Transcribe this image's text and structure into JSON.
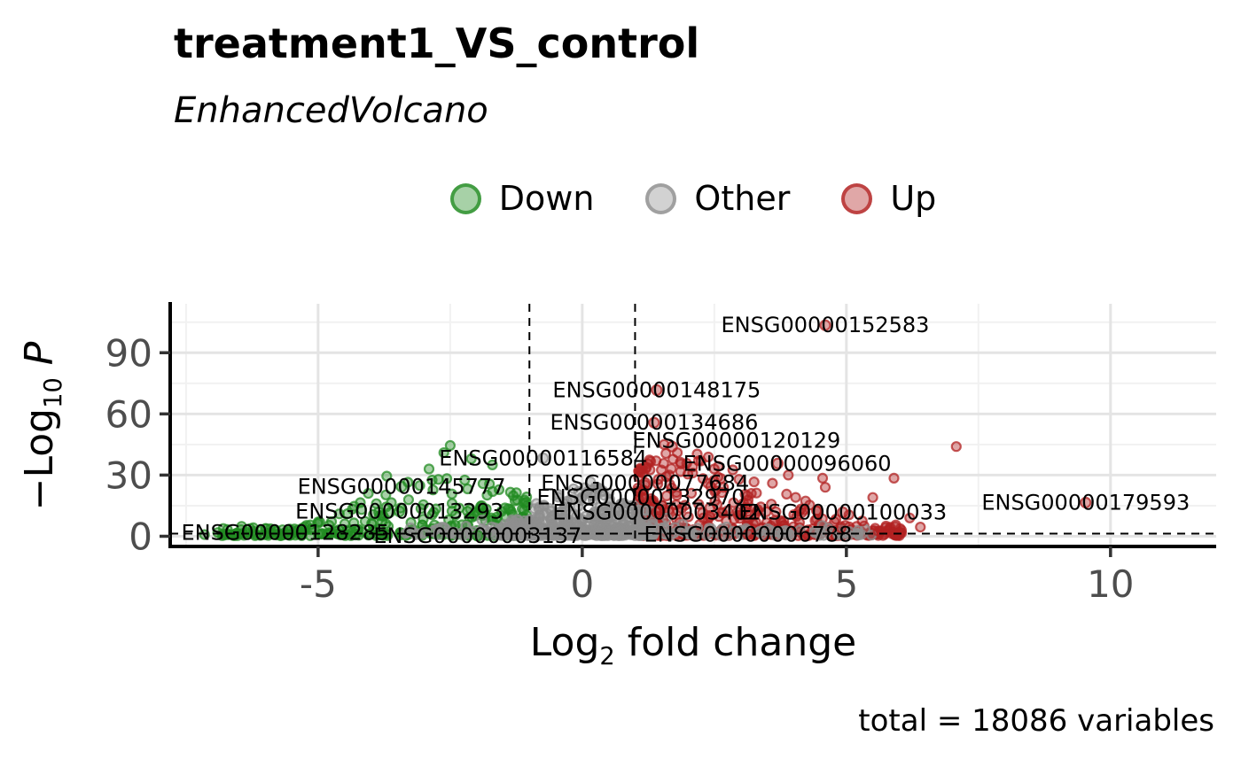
{
  "header": {
    "title": "treatment1_VS_control",
    "subtitle": "EnhancedVolcano"
  },
  "legend": {
    "items": [
      {
        "label": "Down",
        "group": "down"
      },
      {
        "label": "Other",
        "group": "other"
      },
      {
        "label": "Up",
        "group": "up"
      }
    ]
  },
  "axes": {
    "y_label_prefix": "−Log",
    "y_label_sub": "10",
    "y_label_italic": "P",
    "x_label_prefix": "Log",
    "x_label_sub": "2",
    "x_label_suffix": " fold change"
  },
  "caption": "total = 18086 variables",
  "colors": {
    "down": "#228B22",
    "other": "#8f8f8f",
    "up": "#B22222",
    "grid_major": "#e4e4e4",
    "grid_minor": "#f1f1f1",
    "axis": "#000000",
    "tick_mark": "#333333",
    "tick_text": "#4d4d4d",
    "cutoff_line": "#000000"
  },
  "chart_data": {
    "type": "scatter",
    "title": "treatment1_VS_control",
    "subtitle": "EnhancedVolcano",
    "xlabel": "Log2 fold change",
    "ylabel": "-Log10 P",
    "caption": "total = 18086 variables",
    "total_variables": 18086,
    "legend_position": "top",
    "legend_entries": [
      "Down",
      "Other",
      "Up"
    ],
    "xlim": [
      -7.8,
      12.0
    ],
    "ylim": [
      -5,
      114
    ],
    "x_ticks": [
      -5,
      0,
      5,
      10
    ],
    "y_ticks": [
      0,
      30,
      60,
      90
    ],
    "x_minor": [
      -7.5,
      -2.5,
      2.5,
      7.5
    ],
    "y_minor": [
      15,
      45,
      75,
      105
    ],
    "fc_cutoff_lines": [
      -1,
      1
    ],
    "p_cutoff_line": 1.3,
    "grid": true,
    "labeled_points": [
      {
        "gene": "ENSG00000152583",
        "x": 4.6,
        "y": 103.5,
        "label_x": 4.6,
        "label_y": 103.5,
        "group": "up"
      },
      {
        "gene": "ENSG00000148175",
        "x": 1.41,
        "y": 71.7,
        "label_x": 1.41,
        "label_y": 71.7,
        "group": "up"
      },
      {
        "gene": "ENSG00000134686",
        "x": 1.36,
        "y": 55.7,
        "label_x": 1.36,
        "label_y": 55.7,
        "group": "up"
      },
      {
        "gene": "ENSG00000120129",
        "x": 1.7,
        "y": 44.0,
        "label_x": 2.92,
        "label_y": 47.0,
        "group": "up"
      },
      {
        "gene": "ENSG00000096060",
        "x": 3.7,
        "y": 35.7,
        "label_x": 3.88,
        "label_y": 35.7,
        "group": "up"
      },
      {
        "gene": "ENSG00000116584",
        "x": -0.74,
        "y": 38.3,
        "label_x": -0.74,
        "label_y": 38.3,
        "group": "other"
      },
      {
        "gene": "ENSG00000077684",
        "x": 1.19,
        "y": 26.1,
        "label_x": 1.19,
        "label_y": 26.1,
        "group": "up"
      },
      {
        "gene": "ENSG00000132970",
        "x": 1.11,
        "y": 19.1,
        "label_x": 1.11,
        "label_y": 19.1,
        "group": "up"
      },
      {
        "gene": "ENSG00000003402",
        "x": 1.41,
        "y": 11.7,
        "label_x": 1.41,
        "label_y": 11.7,
        "group": "up"
      },
      {
        "gene": "ENSG00000100033",
        "x": 4.93,
        "y": 11.7,
        "label_x": 4.93,
        "label_y": 11.7,
        "group": "up"
      },
      {
        "gene": "ENSG00000006788",
        "x": 3.14,
        "y": 0.9,
        "label_x": 3.14,
        "label_y": 0.9,
        "group": "up"
      },
      {
        "gene": "ENSG00000179593",
        "x": 9.53,
        "y": 16.5,
        "label_x": 9.53,
        "label_y": 16.5,
        "group": "up"
      },
      {
        "gene": "ENSG00000145777",
        "x": -3.42,
        "y": 24.3,
        "label_x": -3.42,
        "label_y": 24.3,
        "group": "down"
      },
      {
        "gene": "ENSG00000013293",
        "x": -3.46,
        "y": 12.2,
        "label_x": -3.46,
        "label_y": 12.2,
        "group": "down"
      },
      {
        "gene": "ENSG00000128285",
        "x": -5.62,
        "y": 1.7,
        "label_x": -5.62,
        "label_y": 1.7,
        "group": "down"
      },
      {
        "gene": "ENSG00000003137",
        "x": -1.98,
        "y": 0.3,
        "label_x": -1.98,
        "label_y": 0.3,
        "group": "down"
      }
    ],
    "extra_points": {
      "down": [
        [
          -2.5,
          44.5
        ],
        [
          -2.62,
          41
        ],
        [
          -2.1,
          38
        ],
        [
          -1.7,
          35
        ],
        [
          -2.9,
          33
        ],
        [
          -3.3,
          26.5
        ],
        [
          -3.7,
          29.5
        ],
        [
          -4.05,
          21
        ],
        [
          -4.2,
          16.5
        ],
        [
          -4.6,
          11
        ],
        [
          -5.0,
          7
        ],
        [
          -5.3,
          4
        ],
        [
          -5.55,
          2.5
        ],
        [
          -5.9,
          1.5
        ],
        [
          -6.3,
          1.2
        ],
        [
          -6.9,
          1.8
        ],
        [
          -7.15,
          0.8
        ]
      ],
      "up": [
        [
          7.08,
          44
        ],
        [
          1.55,
          45
        ],
        [
          1.8,
          41
        ],
        [
          2.2,
          37
        ],
        [
          2.5,
          33
        ],
        [
          2.0,
          30.5
        ],
        [
          3.9,
          30
        ],
        [
          4.55,
          28.5
        ],
        [
          5.9,
          28.5
        ],
        [
          3.6,
          26
        ],
        [
          4.6,
          24
        ],
        [
          5.5,
          19
        ],
        [
          3.2,
          21
        ],
        [
          4.2,
          13
        ],
        [
          5.05,
          10.5
        ],
        [
          6.2,
          9
        ],
        [
          5.3,
          7.5
        ],
        [
          6.4,
          4.5
        ],
        [
          5.75,
          5
        ],
        [
          4.9,
          4
        ],
        [
          5.6,
          2.5
        ],
        [
          6.0,
          1.5
        ]
      ],
      "other": [
        [
          1.9,
          6
        ],
        [
          2.4,
          4
        ],
        [
          3.0,
          3
        ],
        [
          3.8,
          2.5
        ],
        [
          4.5,
          2
        ],
        [
          5.2,
          1.5
        ],
        [
          -2.2,
          5
        ],
        [
          -2.8,
          3
        ],
        [
          -3.2,
          2
        ],
        [
          1.6,
          9
        ],
        [
          -1.9,
          8
        ]
      ]
    },
    "clusters": [
      {
        "group": "down",
        "n": 300,
        "x_start": -1.05,
        "x_span": -5.8,
        "x_pow": 1.6,
        "y_max": 32,
        "y_pow": 2.6,
        "y_env_center": -2.4,
        "y_env_width": 3.5
      },
      {
        "group": "up",
        "n": 430,
        "x_start": 1.05,
        "x_span": 5.0,
        "x_pow": 2.2,
        "y_max": 44,
        "y_pow": 2.6,
        "y_env_center": 1.9,
        "y_env_width": 3.8
      },
      {
        "group": "other",
        "n": 520,
        "x_start": -1.55,
        "x_span": 2.9,
        "x_pow": 1.0,
        "y_max": 27,
        "y_pow": 3.0,
        "y_env_center": 0.1,
        "y_env_width": 2.2
      },
      {
        "group": "other",
        "n": 160,
        "x_start": -3.4,
        "x_span": 8.9,
        "x_pow": 1.0,
        "y_max": 4.5,
        "y_pow": 2.0,
        "y_env_center": 1.0,
        "y_env_width": 99
      }
    ]
  }
}
